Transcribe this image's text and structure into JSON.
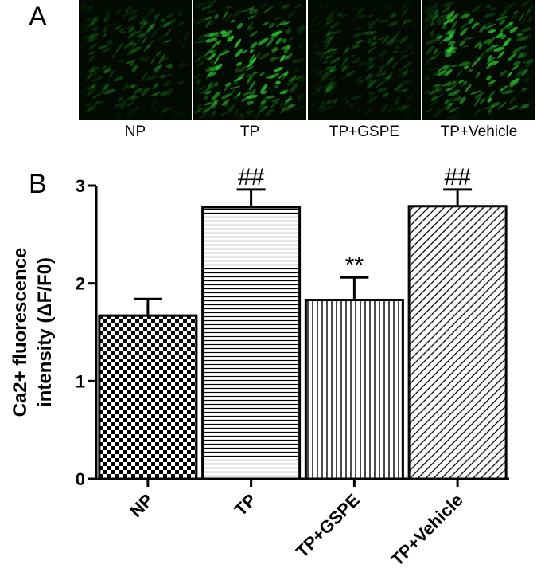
{
  "panel_a": {
    "letter": "A",
    "images": [
      {
        "label": "NP",
        "brightness": 0.35
      },
      {
        "label": "TP",
        "brightness": 0.85
      },
      {
        "label": "TP+GSPE",
        "brightness": 0.3
      },
      {
        "label": "TP+Vehicle",
        "brightness": 0.8
      }
    ]
  },
  "panel_b": {
    "letter": "B"
  },
  "colors": {
    "fluorescence": "#2ecc2e",
    "ink": "#000000"
  },
  "chart_data": {
    "type": "bar",
    "categories": [
      "NP",
      "TP",
      "TP+GSPE",
      "TP+Vehicle"
    ],
    "values": [
      1.67,
      2.78,
      1.83,
      2.79
    ],
    "errors": [
      0.17,
      0.18,
      0.23,
      0.17
    ],
    "patterns": [
      "checkerboard",
      "horizontal-lines",
      "vertical-lines",
      "diagonal-lines"
    ],
    "annotations": [
      "",
      "##",
      "**",
      "##"
    ],
    "ylabel_line1": "Ca2+ fluorescence",
    "ylabel_line2": "intensity (ΔF/F0)",
    "ylim": [
      0,
      3
    ],
    "yticks": [
      0,
      1,
      2,
      3
    ],
    "grid": false
  }
}
